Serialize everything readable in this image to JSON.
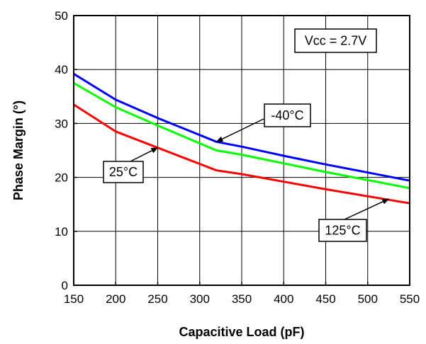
{
  "chart_data": {
    "type": "line",
    "title": "",
    "xlabel": "Capacitive Load (pF)",
    "ylabel": "Phase Margin (°)",
    "xlim": [
      150,
      550
    ],
    "ylim": [
      0,
      50
    ],
    "xticks": [
      150,
      200,
      250,
      300,
      350,
      400,
      450,
      500,
      550
    ],
    "yticks": [
      0,
      10,
      20,
      30,
      40,
      50
    ],
    "grid": true,
    "legend": "none",
    "series": [
      {
        "name": "-40°C",
        "color": "#0000ff",
        "points": [
          [
            150,
            39.2
          ],
          [
            200,
            34.4
          ],
          [
            250,
            31.0
          ],
          [
            320,
            26.6
          ],
          [
            350,
            25.7
          ],
          [
            400,
            24.0
          ],
          [
            450,
            22.4
          ],
          [
            500,
            20.9
          ],
          [
            550,
            19.4
          ]
        ]
      },
      {
        "name": "",
        "color": "#00ff00",
        "points": [
          [
            150,
            37.5
          ],
          [
            200,
            33.0
          ],
          [
            250,
            29.6
          ],
          [
            320,
            25.0
          ],
          [
            350,
            24.2
          ],
          [
            400,
            22.6
          ],
          [
            450,
            21.0
          ],
          [
            500,
            19.5
          ],
          [
            550,
            18.0
          ]
        ]
      },
      {
        "name": "25°C",
        "color": "#ff0000",
        "points": [
          [
            150,
            33.5
          ],
          [
            200,
            28.5
          ],
          [
            250,
            25.5
          ],
          [
            320,
            21.3
          ],
          [
            350,
            20.6
          ],
          [
            400,
            19.2
          ],
          [
            450,
            17.8
          ],
          [
            500,
            16.5
          ],
          [
            550,
            15.2
          ]
        ]
      }
    ],
    "annotations": [
      {
        "text": "Vcc = 2.7V",
        "boxed": true
      },
      {
        "text": "-40°C",
        "boxed": true,
        "arrow_to": [
          320,
          26.6
        ]
      },
      {
        "text": "25°C",
        "boxed": true,
        "arrow_to": [
          250,
          25.5
        ]
      },
      {
        "text": "125°C",
        "boxed": true,
        "arrow_to": [
          525,
          16.0
        ]
      }
    ]
  }
}
